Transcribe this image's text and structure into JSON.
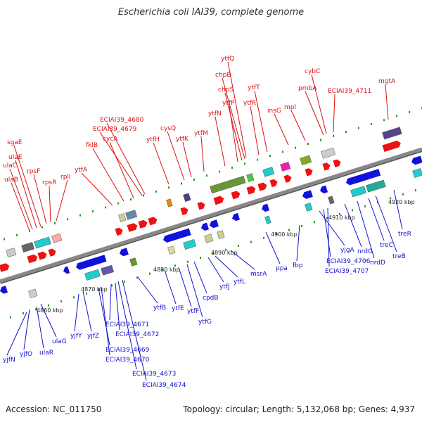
{
  "title": "Escherichia coli IAI39, complete genome",
  "footer": {
    "accession": "Accession: NC_011750",
    "summary": "Topology: circular; Length: 5,132,068 bp; Genes: 4,937"
  },
  "colors": {
    "forward": "#ee1111",
    "reverse": "#1111dd",
    "backbone": "#888888",
    "tick": "#229922"
  },
  "ticks": [
    "4860 kbp",
    "4870 kbp",
    "4880 kbp",
    "4890 kbp",
    "4900 kbp",
    "4910 kbp",
    "4920 kbp"
  ],
  "top_labels": [
    "ulaB",
    "ulaC",
    "ulaE",
    "sgaE",
    "rpsF",
    "rpsR",
    "rplI",
    "ytfA",
    "fklB",
    "cycA",
    "ECIAI39_4679",
    "ECIAI39_4680",
    "ytfH",
    "cysQ",
    "ytfK",
    "ytfM",
    "ytfN",
    "ytfP",
    "chpS",
    "chpB",
    "ytfQ",
    "ytfR",
    "ytfT",
    "insG",
    "mpl",
    "pmbA",
    "cybC",
    "ECIAI39_4711",
    "mgtA"
  ],
  "bottom_labels": [
    "yjfN",
    "yjfO",
    "ulaR",
    "ulaG",
    "yjfY",
    "yjfZ",
    "ECIAI39_4669",
    "ECIAI39_4670",
    "ECIAI39_4671",
    "ECIAI39_4672",
    "ECIAI39_4673",
    "ECIAI39_4674",
    "ytfB",
    "ytfE",
    "ytfF",
    "ytfG",
    "cpdB",
    "ytfJ",
    "ytfL",
    "msrA",
    "ppa",
    "fbp",
    "yjgA",
    "ECIAI39_4706",
    "ECIAI39_4707",
    "nrdG",
    "nrdD",
    "treC",
    "treB",
    "treR"
  ]
}
